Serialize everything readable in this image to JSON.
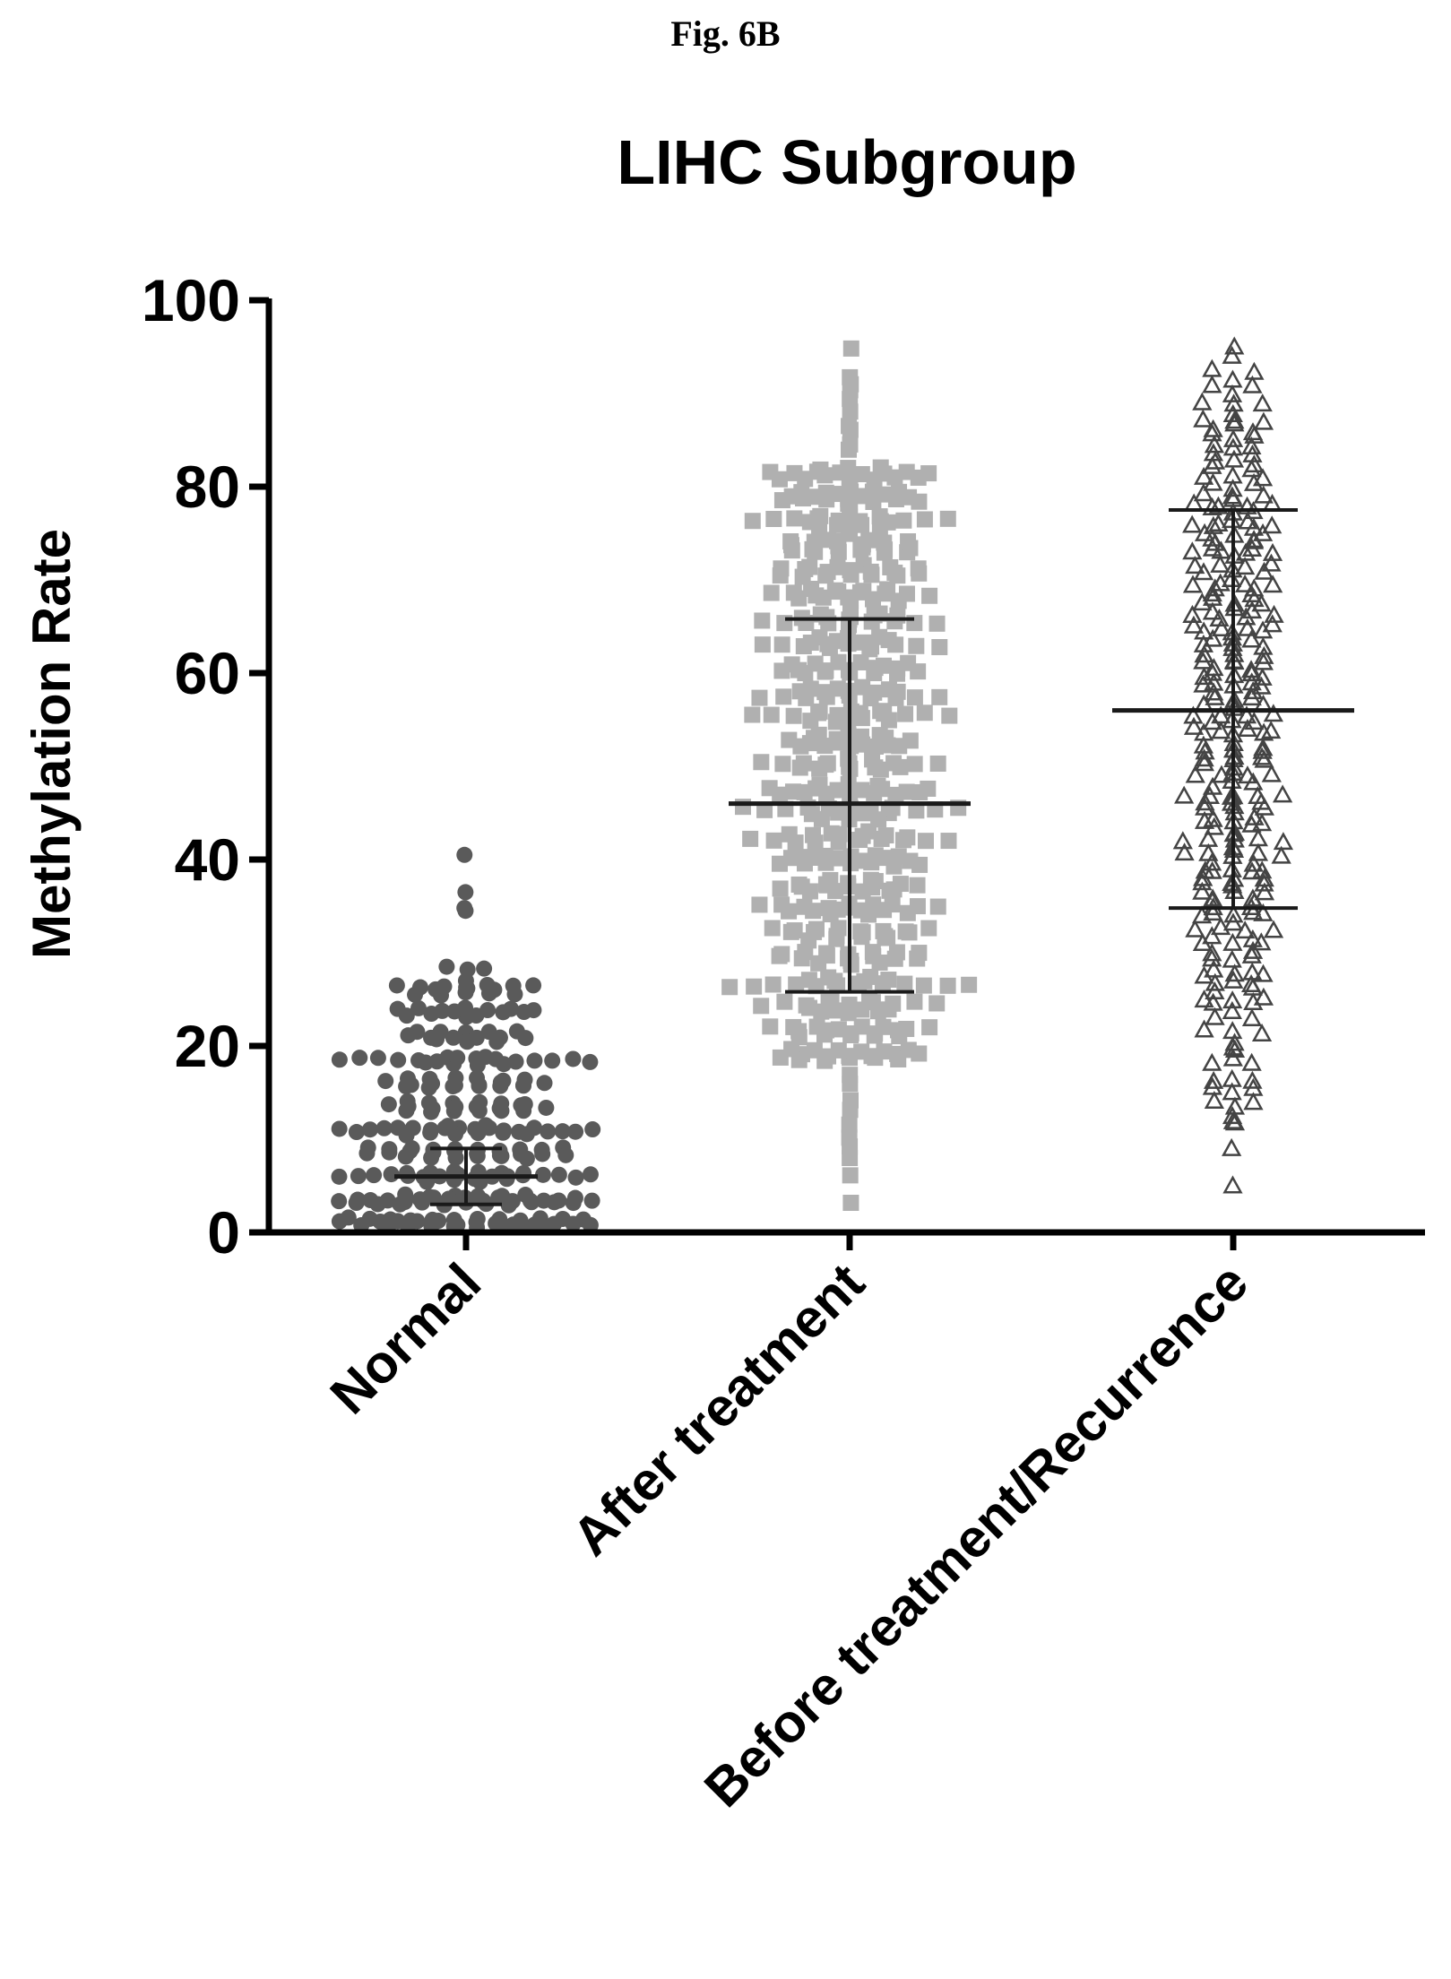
{
  "figure_label": "Fig. 6B",
  "chart_data": {
    "type": "scatter",
    "subtype": "scatter-dot plot with mean and SD error bars",
    "title": "LIHC Subgroup",
    "xlabel": "",
    "ylabel": "Methylation Rate",
    "ylim": [
      0,
      100
    ],
    "yticks": [
      0,
      20,
      40,
      60,
      80,
      100
    ],
    "categories": [
      "Normal",
      "After treatment",
      "Before treatment/Recurrence"
    ],
    "grid": false,
    "legend": "none",
    "series": [
      {
        "category": "Normal",
        "marker": "circle",
        "color": "#5a5a5a",
        "mean": 6,
        "sd_low": 3,
        "sd_high": 9,
        "range": [
          0,
          40.5
        ],
        "dense_bands": [
          1,
          3.5,
          6,
          8.5,
          11,
          13.5,
          16,
          18.5,
          21,
          23.5,
          26
        ],
        "outliers": [
          28.5,
          28.3,
          26.5,
          27,
          28.2,
          34.8,
          34.5,
          36.5,
          40.5
        ]
      },
      {
        "category": "After treatment",
        "marker": "square",
        "color": "#b0b0b0",
        "mean": 46,
        "sd_low": 25.8,
        "sd_high": 65.8,
        "range": [
          3,
          95
        ]
      },
      {
        "category": "Before treatment/Recurrence",
        "marker": "triangle",
        "color": "#444444",
        "mean": 56,
        "sd_low": 34.8,
        "sd_high": 77.5,
        "range": [
          5,
          95
        ]
      }
    ]
  },
  "colors": {
    "axis": "#000000",
    "normal_marker": "#5a5a5a",
    "after_marker": "#b0b0b0",
    "before_marker": "#444444"
  }
}
